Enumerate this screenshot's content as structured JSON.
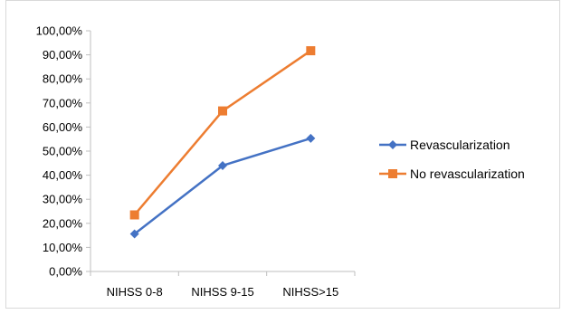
{
  "chart_data": {
    "type": "line",
    "categories": [
      "NIHSS 0-8",
      "NIHSS 9-15",
      "NIHSS>15"
    ],
    "series": [
      {
        "name": "Revascularization",
        "values": [
          15.6,
          44.0,
          55.3
        ],
        "color": "#4472C4",
        "marker": "diamond"
      },
      {
        "name": "No revascularization",
        "values": [
          23.5,
          66.7,
          91.7
        ],
        "color": "#ED7D31",
        "marker": "square"
      }
    ],
    "ylim": [
      0,
      100
    ],
    "yticks": [
      "0,00%",
      "10,00%",
      "20,00%",
      "30,00%",
      "40,00%",
      "50,00%",
      "60,00%",
      "70,00%",
      "80,00%",
      "90,00%",
      "100,00%"
    ],
    "grid": false,
    "legend_position": "right"
  }
}
